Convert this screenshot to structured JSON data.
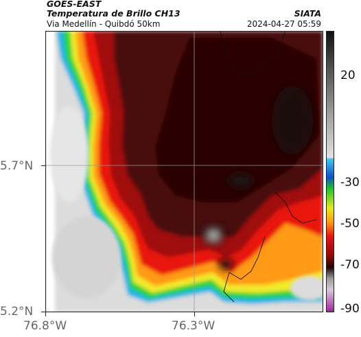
{
  "header": {
    "satellite": "GOES-EAST",
    "product": "Temperatura de Brillo CH13",
    "region": "Via Medellín - Quibdó 50km",
    "source": "SIATA",
    "timestamp": "2024-04-27 05:59"
  },
  "axes": {
    "lat_labels": [
      "5.7°N",
      "5.2°N"
    ],
    "lon_labels": [
      "76.8°W",
      "76.3°W"
    ]
  },
  "colorbar": {
    "labels": [
      "20",
      "-30",
      "-50",
      "-70",
      "-90"
    ],
    "units": ""
  },
  "colors": {
    "cold_core": "#2a0606",
    "warm_clear": "#d8d8d8",
    "frame": "#222222"
  }
}
